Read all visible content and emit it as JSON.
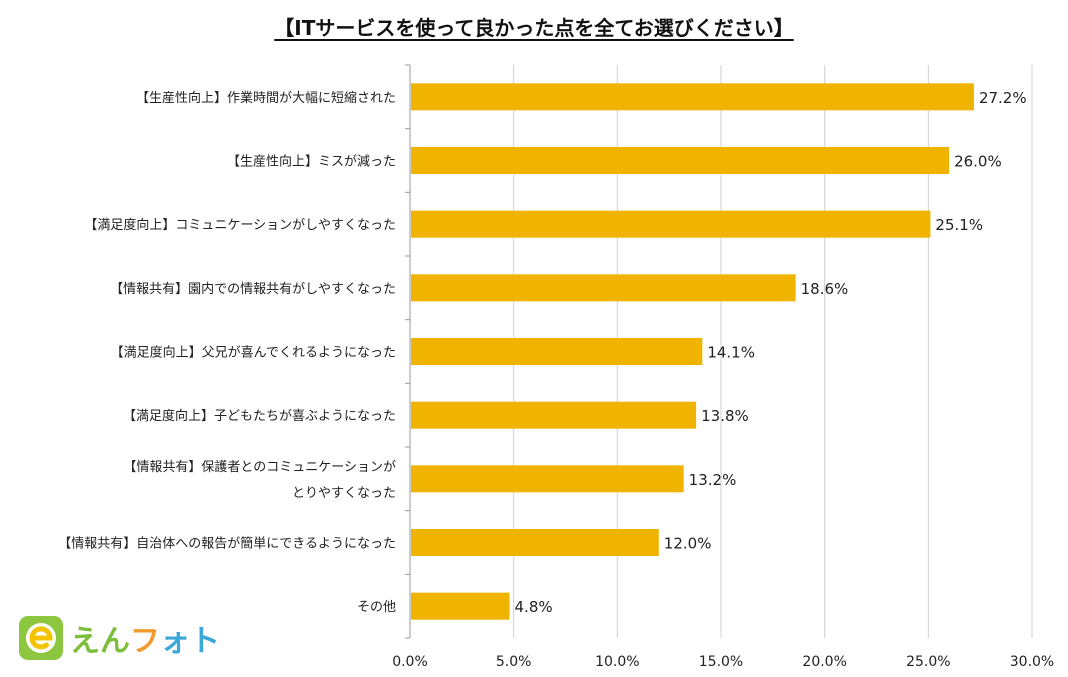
{
  "chart_data": {
    "type": "bar",
    "orientation": "horizontal",
    "title": "【ITサービスを使って良かった点を全てお選びください】",
    "categories": [
      [
        "【生産性向上】作業時間が大幅に短縮された"
      ],
      [
        "【生産性向上】ミスが減った"
      ],
      [
        "【満足度向上】コミュニケーションがしやすくなった"
      ],
      [
        "【情報共有】園内での情報共有がしやすくなった"
      ],
      [
        "【満足度向上】父兄が喜んでくれるようになった"
      ],
      [
        "【満足度向上】子どもたちが喜ぶようになった"
      ],
      [
        "【情報共有】保護者とのコミュニケーションが",
        "とりやすくなった"
      ],
      [
        "【情報共有】自治体への報告が簡単にできるようになった"
      ],
      [
        "その他"
      ]
    ],
    "values": [
      27.2,
      26.0,
      25.1,
      18.6,
      14.1,
      13.8,
      13.2,
      12.0,
      4.8
    ],
    "data_labels": [
      "27.2%",
      "26.0%",
      "25.1%",
      "18.6%",
      "14.1%",
      "13.8%",
      "13.2%",
      "12.0%",
      "4.8%"
    ],
    "xlim": [
      0,
      30
    ],
    "x_ticks": [
      "0.0%",
      "5.0%",
      "10.0%",
      "15.0%",
      "20.0%",
      "25.0%",
      "30.0%"
    ],
    "grid": true,
    "bar_color": "#F0B400",
    "grid_color": "#D0D0D0"
  },
  "logo": {
    "icon": "enphoto-e-icon",
    "chars": [
      "え",
      "ん",
      "フ",
      "ォ",
      "ト"
    ],
    "colors": [
      "#7DBE3A",
      "#7DBE3A",
      "#F39A2E",
      "#3BA7D9",
      "#3BA7D9"
    ]
  }
}
